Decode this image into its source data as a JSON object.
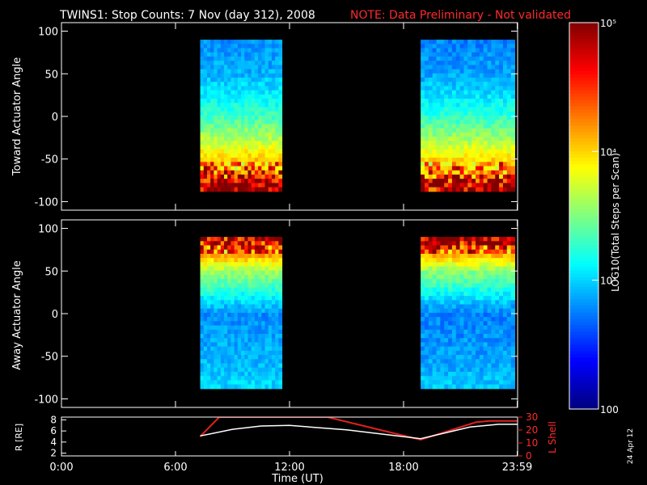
{
  "header": {
    "title": "TWINS1: Stop Counts:  7 Nov (day 312), 2008",
    "note": "NOTE: Data Preliminary - Not validated"
  },
  "colors": {
    "background": "#000000",
    "foreground": "#ffffff",
    "note": "#ff2020",
    "lshell": "#e02020",
    "radius": "#ffffff"
  },
  "date_stamp": "24 Apr 12",
  "colorbar": {
    "label": "LOG10(Total Steps per Scan)",
    "scale": "log",
    "range": [
      100,
      100000
    ],
    "tick_labels": [
      "100",
      "10³",
      "10⁴",
      "10⁵"
    ],
    "tick_values": [
      100,
      1000,
      10000,
      100000
    ],
    "colormap": "jet"
  },
  "x_axis": {
    "label": "Time (UT)",
    "range_hours": [
      0,
      24
    ],
    "tick_labels": [
      "0:00",
      "6:00",
      "12:00",
      "18:00",
      "23:59"
    ],
    "tick_values_hours": [
      0,
      6,
      12,
      18,
      23.98
    ]
  },
  "chart_data": [
    {
      "type": "heatmap",
      "panel": "toward",
      "ylabel": "Toward Actuator Angle",
      "ylim": [
        -110,
        110
      ],
      "y_tick_labels": [
        "100",
        "50",
        "0",
        "-50",
        "-100"
      ],
      "y_tick_values": [
        100,
        50,
        0,
        -50,
        -100
      ],
      "angle_range": [
        -88,
        90
      ],
      "coverage_hours": [
        [
          7.3,
          11.6
        ],
        [
          18.9,
          23.85
        ]
      ],
      "log_counts_description": "log10 counts: ~2.8 near +90 deg rising to ~4.3-5 near -88 deg; noisy red/yellow band below -55 deg",
      "log_counts_profile_deg": [
        [
          90,
          2.8
        ],
        [
          50,
          2.9
        ],
        [
          0,
          3.3
        ],
        [
          -30,
          3.7
        ],
        [
          -60,
          4.2
        ],
        [
          -80,
          4.8
        ]
      ]
    },
    {
      "type": "heatmap",
      "panel": "away",
      "ylabel": "Away Actuator Angle",
      "ylim": [
        -110,
        110
      ],
      "y_tick_labels": [
        "100",
        "50",
        "0",
        "-50",
        "-100"
      ],
      "y_tick_values": [
        100,
        50,
        0,
        -50,
        -100
      ],
      "angle_range": [
        -88,
        90
      ],
      "coverage_hours": [
        [
          7.3,
          11.6
        ],
        [
          18.9,
          23.85
        ]
      ],
      "log_counts_profile_deg": [
        [
          90,
          4.8
        ],
        [
          70,
          4.2
        ],
        [
          50,
          3.6
        ],
        [
          0,
          2.8
        ],
        [
          -50,
          2.9
        ],
        [
          -80,
          3.0
        ]
      ]
    },
    {
      "type": "line",
      "panel": "orbit",
      "ylabel": "R [RE]",
      "ylabel_right": "L Shell",
      "ylim": [
        1.5,
        8.5
      ],
      "y_tick_labels": [
        "8",
        "6",
        "4",
        "2"
      ],
      "y_tick_values": [
        8,
        6,
        4,
        2
      ],
      "y2lim": [
        0,
        30
      ],
      "y2_tick_labels": [
        "30",
        "20",
        "10",
        "0"
      ],
      "y2_tick_values": [
        30,
        20,
        10,
        0
      ],
      "series": [
        {
          "axis": "R",
          "x": [
            7.3,
            9.0,
            10.5,
            12.0,
            15.0,
            18.9,
            21.5,
            23.0,
            23.98
          ],
          "y": [
            5.1,
            6.3,
            6.9,
            7.0,
            6.2,
            4.6,
            6.7,
            7.2,
            7.2
          ]
        },
        {
          "axis": "L",
          "x": [
            7.3,
            8.3,
            14.0,
            18.9,
            21.8,
            22.5,
            23.98
          ],
          "y": [
            15,
            30,
            30,
            12.5,
            26,
            27,
            27
          ]
        }
      ]
    }
  ]
}
